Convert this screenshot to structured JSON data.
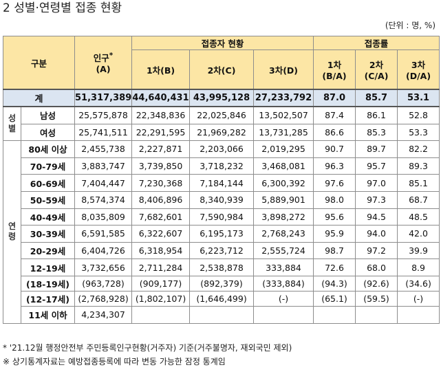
{
  "title": "2 성별·연령별 접종 현황",
  "unit": "(단위 : 명, %)",
  "header": {
    "group": "구분",
    "population_line1": "인구",
    "population_mark": "*",
    "population_line2": "(A)",
    "vaccinated_group": "접종자 현황",
    "rate_group": "접종률",
    "dose1": "1차(B)",
    "dose2": "2차(C)",
    "dose3": "3차(D)",
    "rate1_line1": "1차",
    "rate1_line2": "(B/A)",
    "rate2_line1": "2차",
    "rate2_line2": "(C/A)",
    "rate3_line1": "3차",
    "rate3_line2": "(D/A)"
  },
  "side_labels": {
    "sex": [
      "성",
      "별"
    ],
    "age": [
      "연",
      "령"
    ]
  },
  "total": {
    "label": "계",
    "values": [
      "51,317,389",
      "44,640,431",
      "43,995,128",
      "27,233,792",
      "87.0",
      "85.7",
      "53.1"
    ]
  },
  "sex_rows": [
    {
      "label": "남성",
      "values": [
        "25,575,878",
        "22,348,836",
        "22,025,846",
        "13,502,507",
        "87.4",
        "86.1",
        "52.8"
      ]
    },
    {
      "label": "여성",
      "values": [
        "25,741,511",
        "22,291,595",
        "21,969,282",
        "13,731,285",
        "86.6",
        "85.3",
        "53.3"
      ]
    }
  ],
  "age_rows": [
    {
      "label": "80세 이상",
      "values": [
        "2,455,738",
        "2,227,871",
        "2,203,066",
        "2,019,295",
        "90.7",
        "89.7",
        "82.2"
      ]
    },
    {
      "label": "70-79세",
      "values": [
        "3,883,747",
        "3,739,850",
        "3,718,232",
        "3,468,081",
        "96.3",
        "95.7",
        "89.3"
      ]
    },
    {
      "label": "60-69세",
      "values": [
        "7,404,447",
        "7,230,368",
        "7,184,144",
        "6,300,392",
        "97.6",
        "97.0",
        "85.1"
      ]
    },
    {
      "label": "50-59세",
      "values": [
        "8,574,374",
        "8,406,896",
        "8,340,939",
        "5,889,901",
        "98.0",
        "97.3",
        "68.7"
      ]
    },
    {
      "label": "40-49세",
      "values": [
        "8,035,809",
        "7,682,601",
        "7,590,984",
        "3,898,272",
        "95.6",
        "94.5",
        "48.5"
      ]
    },
    {
      "label": "30-39세",
      "values": [
        "6,591,585",
        "6,322,607",
        "6,195,173",
        "2,768,243",
        "95.9",
        "94.0",
        "42.0"
      ]
    },
    {
      "label": "20-29세",
      "values": [
        "6,404,726",
        "6,318,954",
        "6,223,712",
        "2,555,724",
        "98.7",
        "97.2",
        "39.9"
      ]
    },
    {
      "label": "12-19세",
      "values": [
        "3,732,656",
        "2,711,284",
        "2,538,878",
        "333,884",
        "72.6",
        "68.0",
        "8.9"
      ]
    }
  ],
  "sub_rows": [
    {
      "label": "(18-19세)",
      "values": [
        "(963,728)",
        "(909,177)",
        "(892,379)",
        "(333,884)",
        "(94.3)",
        "(92.6)",
        "(34.6)"
      ]
    },
    {
      "label": "(12-17세)",
      "values": [
        "(2,768,928)",
        "(1,802,107)",
        "(1,646,499)",
        "(-)",
        "(65.1)",
        "(59.5)",
        "(-)"
      ]
    }
  ],
  "under11": {
    "label": "11세 이하",
    "population": "4,234,307"
  },
  "footnotes": [
    "* '21.12월 행정안전부 주민등록인구현황(거주자) 기준(거주불명자, 재외국민 제외)",
    "※ 상기통계자료는 예방접종등록에 따라 변동 가능한 잠정 통계임"
  ]
}
